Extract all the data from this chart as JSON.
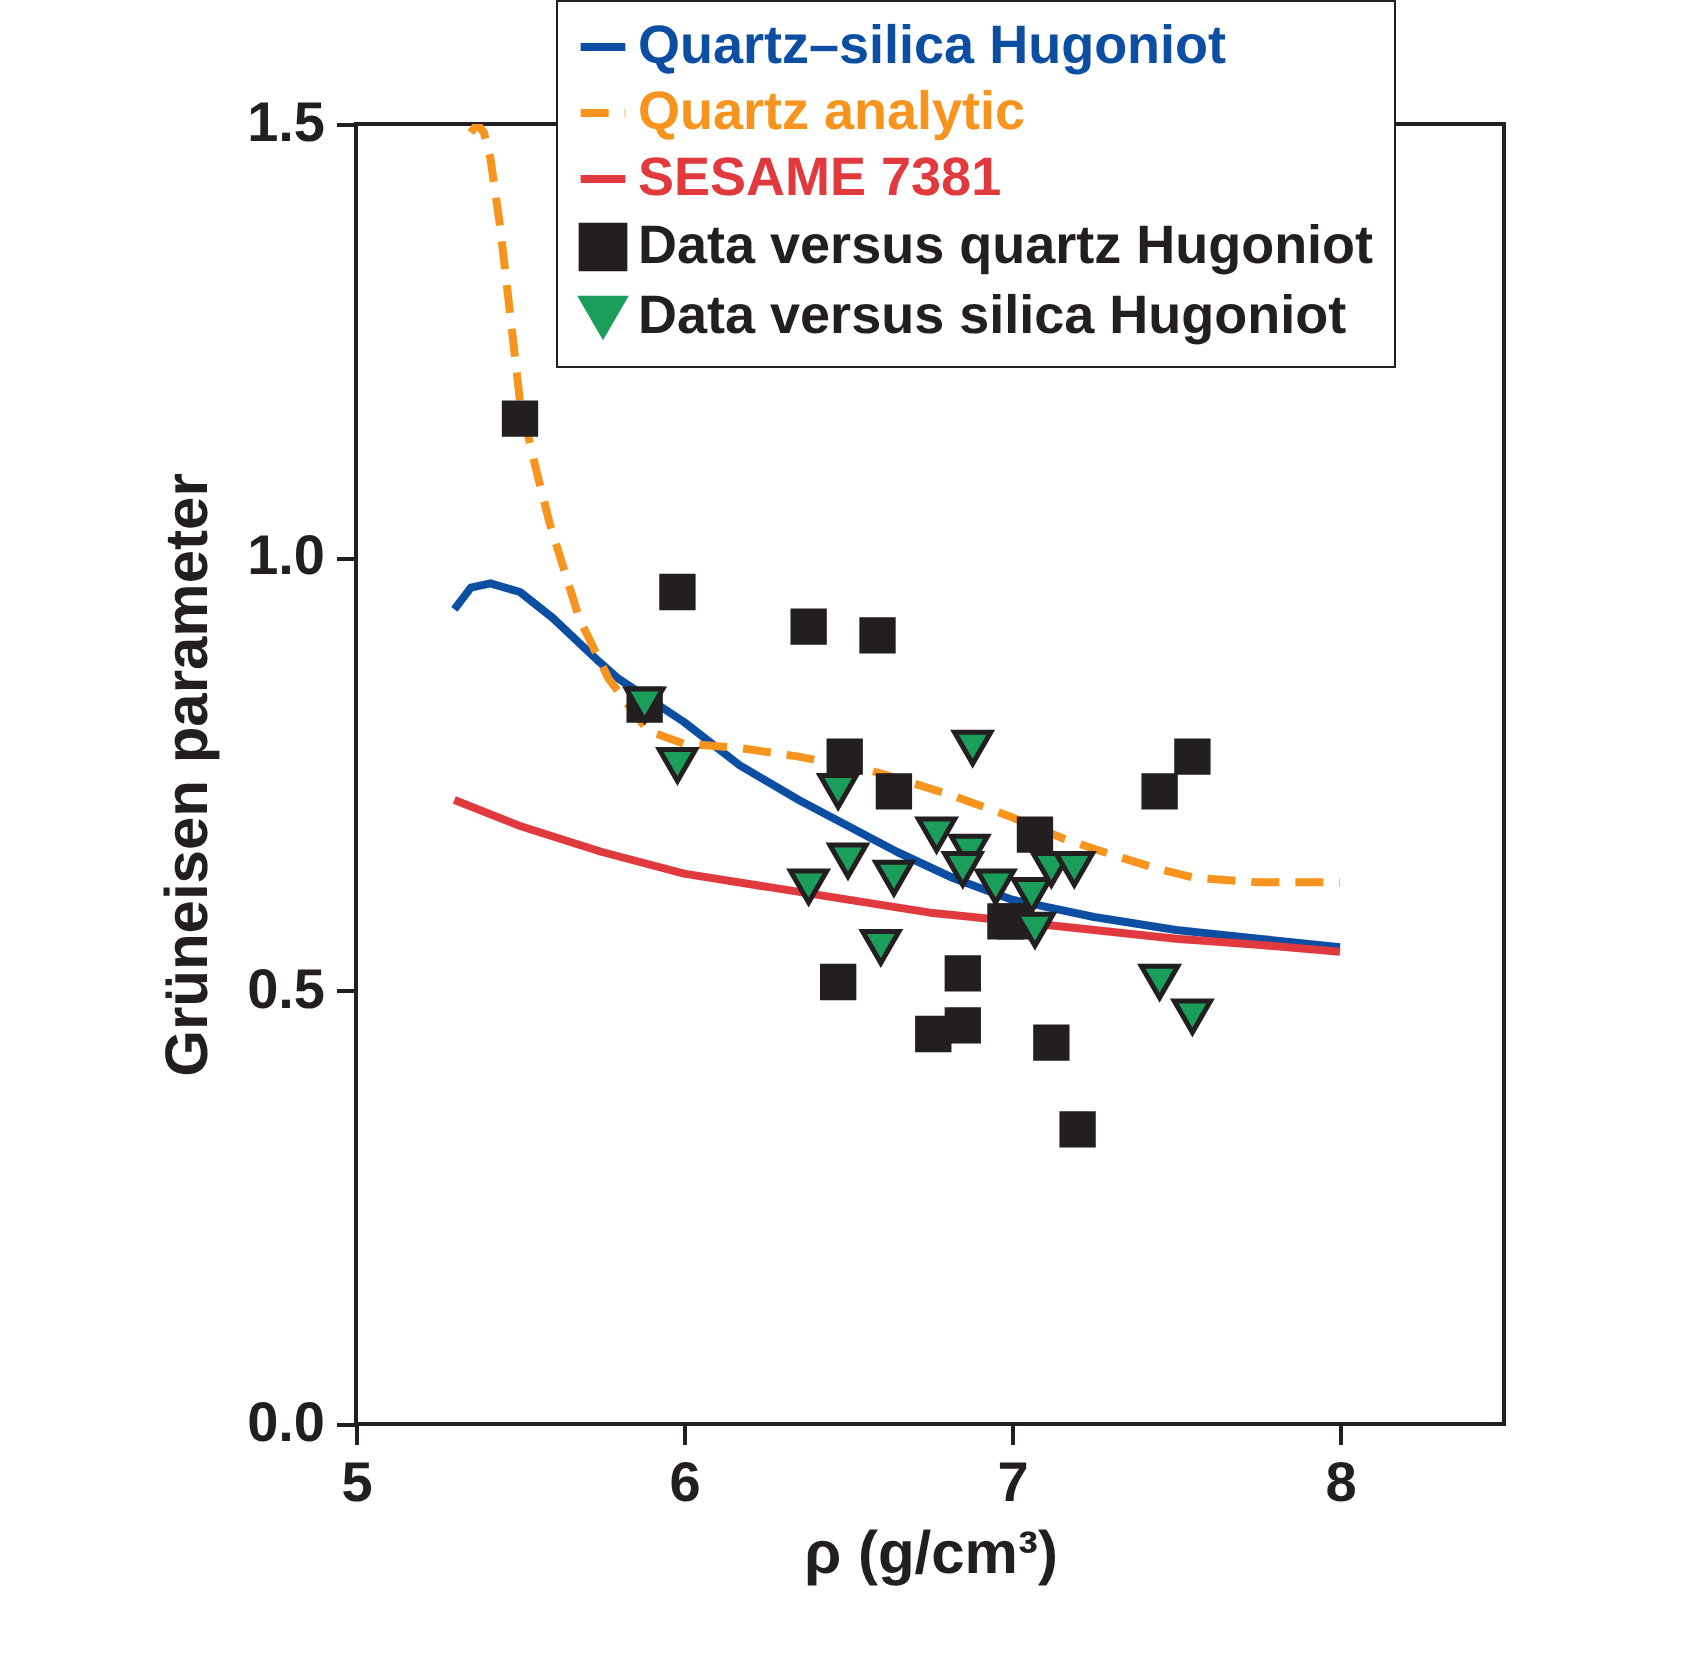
{
  "chart_data": {
    "type": "line",
    "xlabel": "ρ (g/cm³)",
    "ylabel": "Grüneisen parameter",
    "xlim": [
      5,
      8.5
    ],
    "xticks": [
      5,
      6,
      7,
      8
    ],
    "ylim": [
      0,
      1.5
    ],
    "yticks": [
      {
        "value": 0,
        "label": "0.0"
      },
      {
        "value": 0.5,
        "label": "0.5"
      },
      {
        "value": 1,
        "label": "1.0"
      },
      {
        "value": 1.5,
        "label": "1.5"
      }
    ],
    "grid": false,
    "legend": "top right",
    "series": [
      {
        "name": "Quartz–silica Hugoniot",
        "color": "#0b4ea2",
        "line_style": "solid",
        "x": [
          5.3,
          5.35,
          5.41,
          5.5,
          5.6,
          5.74,
          5.8,
          6.0,
          6.17,
          6.35,
          6.5,
          6.65,
          6.82,
          7.0,
          7.25,
          7.5,
          7.75,
          8.0
        ],
        "values": [
          0.94,
          0.965,
          0.97,
          0.96,
          0.93,
          0.88,
          0.86,
          0.81,
          0.76,
          0.72,
          0.69,
          0.66,
          0.63,
          0.605,
          0.585,
          0.57,
          0.56,
          0.55
        ]
      },
      {
        "name": "Quartz analytic",
        "color": "#f7941d",
        "line_style": "dashed",
        "x": [
          5.35,
          5.37,
          5.39,
          5.41,
          5.44,
          5.47,
          5.5,
          5.55,
          5.59,
          5.68,
          5.77,
          5.89,
          6.0,
          6.17,
          6.35,
          6.56,
          6.65,
          6.82,
          7.0,
          7.16,
          7.32,
          7.45,
          7.56,
          7.75,
          8.0
        ],
        "values": [
          1.49,
          1.5,
          1.49,
          1.46,
          1.38,
          1.28,
          1.18,
          1.1,
          1.04,
          0.93,
          0.86,
          0.8,
          0.785,
          0.78,
          0.77,
          0.755,
          0.745,
          0.725,
          0.7,
          0.675,
          0.655,
          0.64,
          0.63,
          0.625,
          0.625
        ]
      },
      {
        "name": "SESAME 7381",
        "color": "#e03a3e",
        "line_style": "solid",
        "x": [
          5.3,
          5.5,
          5.75,
          6.0,
          6.25,
          6.5,
          6.75,
          6.88,
          7.25,
          7.5,
          7.75,
          8.0
        ],
        "values": [
          0.72,
          0.69,
          0.66,
          0.635,
          0.62,
          0.605,
          0.59,
          0.585,
          0.57,
          0.56,
          0.553,
          0.545
        ]
      },
      {
        "name": "Data versus quartz Hugoniot",
        "type": "scatter",
        "marker": "square",
        "color": "#231f20",
        "x": [
          5.5,
          5.98,
          6.38,
          6.59,
          5.88,
          6.49,
          6.64,
          7.07,
          7.45,
          7.55,
          6.47,
          6.76,
          6.85,
          6.85,
          6.98,
          7.01,
          7.12,
          7.2
        ],
        "values": [
          1.16,
          0.96,
          0.92,
          0.91,
          0.83,
          0.77,
          0.73,
          0.68,
          0.73,
          0.77,
          0.51,
          0.45,
          0.46,
          0.52,
          0.58,
          0.58,
          0.44,
          0.34
        ]
      },
      {
        "name": "Data versus silica Hugoniot",
        "type": "scatter",
        "marker": "triangle",
        "color": "#1a9e5a",
        "x": [
          5.88,
          5.98,
          6.47,
          6.5,
          6.38,
          6.64,
          6.6,
          6.88,
          6.77,
          6.87,
          6.85,
          6.95,
          7.06,
          7.12,
          7.19,
          7.07,
          7.45,
          7.55
        ],
        "values": [
          0.83,
          0.76,
          0.73,
          0.65,
          0.62,
          0.63,
          0.55,
          0.78,
          0.68,
          0.66,
          0.64,
          0.62,
          0.61,
          0.64,
          0.64,
          0.57,
          0.51,
          0.47
        ]
      }
    ]
  }
}
